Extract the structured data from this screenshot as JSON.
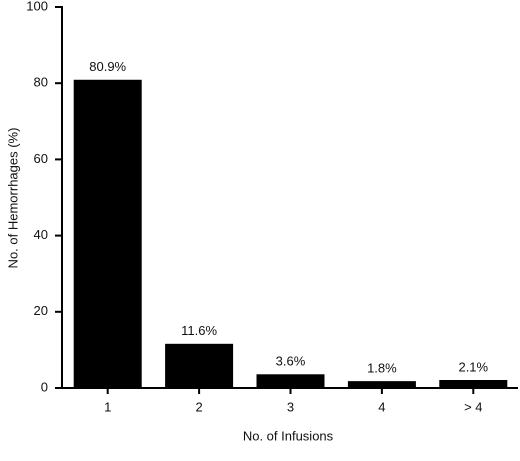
{
  "chart_data": {
    "type": "bar",
    "xlabel": "No. of Infusions",
    "ylabel": "No. of Hemorrhages (%)",
    "categories": [
      "1",
      "2",
      "3",
      "4",
      "> 4"
    ],
    "values": [
      80.9,
      11.6,
      3.6,
      1.8,
      2.1
    ],
    "value_labels": [
      "80.9%",
      "11.6%",
      "3.6%",
      "1.8%",
      "2.1%"
    ],
    "color": "#000000",
    "ylim": [
      0,
      100
    ],
    "yticks": [
      0,
      20,
      40,
      60,
      80,
      100
    ],
    "grid": false
  }
}
